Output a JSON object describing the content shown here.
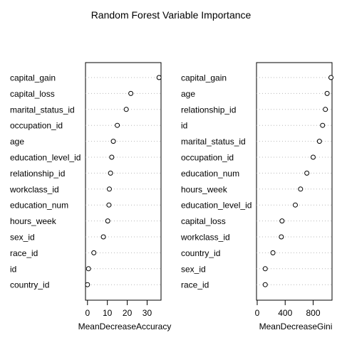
{
  "title": "Random Forest Variable Importance",
  "chart_data": [
    {
      "type": "scatter",
      "style": "dotchart",
      "xlabel": "MeanDecreaseAccuracy",
      "xlim": [
        -1,
        37
      ],
      "xticks": [
        0,
        10,
        20,
        30
      ],
      "grid": "dotted horizontal guide lines",
      "categories": [
        "capital_gain",
        "capital_loss",
        "marital_status_id",
        "occupation_id",
        "age",
        "education_level_id",
        "relationship_id",
        "workclass_id",
        "education_num",
        "hours_week",
        "sex_id",
        "race_id",
        "id",
        "country_id"
      ],
      "values": [
        36.0,
        21.8,
        19.5,
        15.0,
        13.0,
        12.2,
        11.6,
        11.0,
        10.8,
        10.2,
        8.0,
        3.2,
        0.5,
        0.0
      ]
    },
    {
      "type": "scatter",
      "style": "dotchart",
      "xlabel": "MeanDecreaseGini",
      "xlim": [
        -10,
        1070
      ],
      "xticks": [
        0,
        400,
        800
      ],
      "grid": "dotted horizontal guide lines",
      "categories": [
        "capital_gain",
        "age",
        "relationship_id",
        "id",
        "marital_status_id",
        "occupation_id",
        "education_num",
        "hours_week",
        "education_level_id",
        "capital_loss",
        "workclass_id",
        "country_id",
        "sex_id",
        "race_id"
      ],
      "values": [
        1055,
        1000,
        975,
        935,
        890,
        800,
        710,
        620,
        545,
        355,
        345,
        225,
        115,
        115
      ]
    }
  ]
}
